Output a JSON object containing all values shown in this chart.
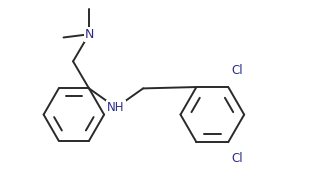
{
  "bg_color": "#ffffff",
  "line_color": "#2a2a2a",
  "N_color": "#2b2b8a",
  "Cl_color": "#2b2b8a",
  "line_width": 1.4,
  "font_size": 8.5,
  "fig_width": 3.26,
  "fig_height": 1.91,
  "dpi": 100,
  "xlim": [
    0,
    10
  ],
  "ylim": [
    0,
    6
  ]
}
